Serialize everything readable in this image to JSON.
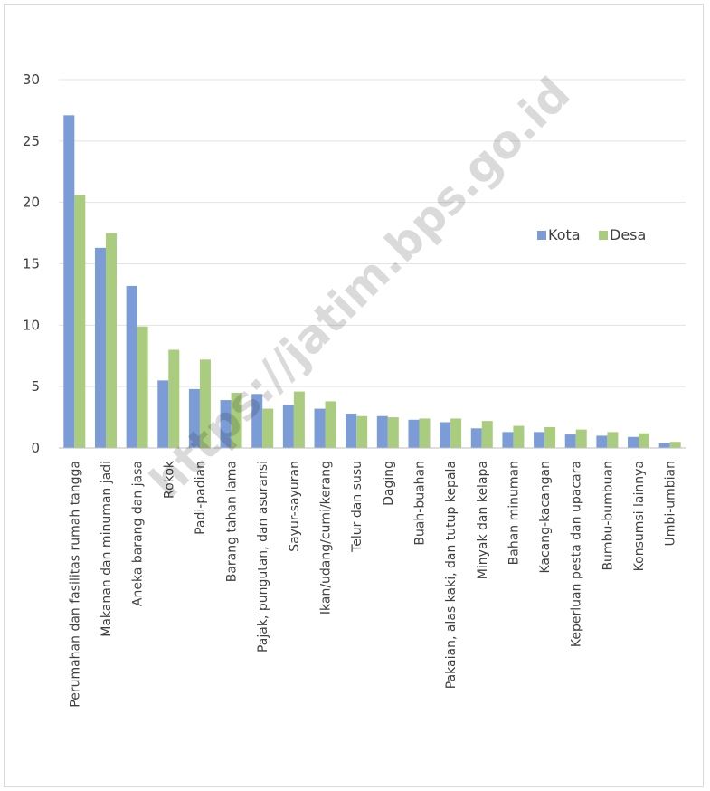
{
  "chart_data": {
    "type": "bar",
    "title": "",
    "xlabel": "",
    "ylabel": "",
    "ylim": [
      0,
      30
    ],
    "yticks": [
      0,
      5,
      10,
      15,
      20,
      25,
      30
    ],
    "grid": true,
    "legend_position": "right",
    "categories": [
      "Perumahan dan fasilitas rumah tangga",
      "Makanan dan minuman jadi",
      "Aneka barang dan jasa",
      "Rokok",
      "Padi-padian",
      "Barang tahan lama",
      "Pajak, pungutan, dan asuransi",
      "Sayur-sayuran",
      "Ikan/udang/cumi/kerang",
      "Telur dan susu",
      "Daging",
      "Buah-buahan",
      "Pakaian, alas kaki, dan tutup kepala",
      "Minyak dan kelapa",
      "Bahan minuman",
      "Kacang-kacangan",
      "Keperluan pesta dan upacara",
      "Bumbu-bumbuan",
      "Konsumsi lainnya",
      "Umbi-umbian"
    ],
    "series": [
      {
        "name": "Kota",
        "color": "#7b9cd6",
        "values": [
          27.1,
          16.3,
          13.2,
          5.5,
          4.8,
          3.9,
          4.4,
          3.5,
          3.2,
          2.8,
          2.6,
          2.3,
          2.1,
          1.6,
          1.3,
          1.3,
          1.1,
          1.0,
          0.9,
          0.4
        ]
      },
      {
        "name": "Desa",
        "color": "#a9cc7e",
        "values": [
          20.6,
          17.5,
          9.9,
          8.0,
          7.2,
          4.5,
          3.2,
          4.6,
          3.8,
          2.6,
          2.5,
          2.4,
          2.4,
          2.2,
          1.8,
          1.7,
          1.5,
          1.3,
          1.2,
          0.5
        ]
      }
    ]
  },
  "watermark": "https://jatim.bps.go.id"
}
